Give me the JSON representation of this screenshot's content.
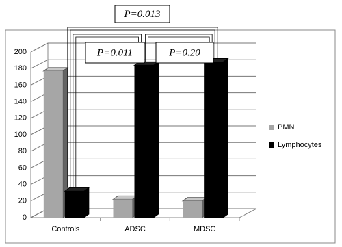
{
  "chart_data": {
    "type": "bar3d",
    "categories": [
      "Controls",
      "ADSC",
      "MDSC"
    ],
    "series": [
      {
        "name": "PMN",
        "color": "#a6a6a6",
        "values": [
          177,
          22,
          20
        ]
      },
      {
        "name": "Lymphocytes",
        "color": "#000000",
        "values": [
          32,
          184,
          188
        ]
      }
    ],
    "ylim": [
      0,
      200
    ],
    "yticks": [
      0,
      20,
      40,
      60,
      80,
      100,
      120,
      140,
      160,
      180,
      200
    ],
    "grid": true,
    "legend": "right",
    "annotations": [
      {
        "text": "P=0.013"
      },
      {
        "text": "P=0.011"
      },
      {
        "text": "P=0.20"
      }
    ]
  }
}
